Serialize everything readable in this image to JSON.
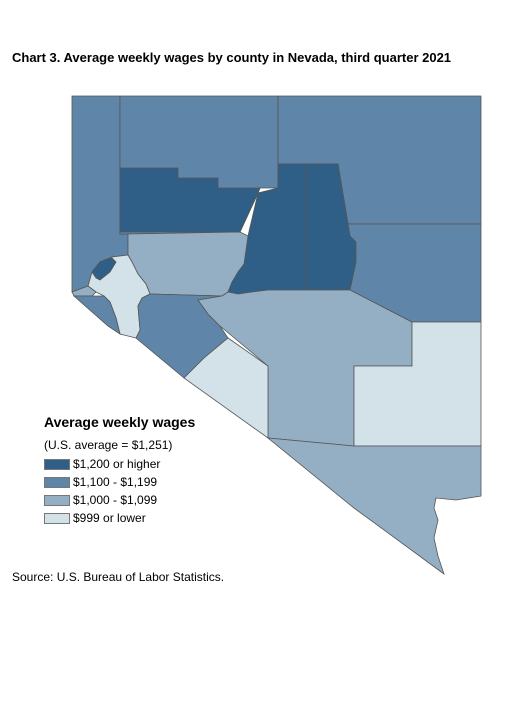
{
  "title": "Chart 3. Average weekly wages by county in Nevada, third quarter 2021",
  "legend": {
    "title": "Average weekly wages",
    "subtitle": "(U.S. average = $1,251)",
    "items": [
      {
        "label": "$1,200 or higher",
        "color": "#2f5f86"
      },
      {
        "label": "$1,100 - $1,199",
        "color": "#5f86a8"
      },
      {
        "label": "$1,000 - $1,099",
        "color": "#94afc4"
      },
      {
        "label": "$999 or lower",
        "color": "#d2e2e8"
      }
    ]
  },
  "source": "Source: U.S. Bureau of Labor Statistics.",
  "chart_data": {
    "type": "choropleth",
    "region": "Nevada counties",
    "period": "third quarter 2021",
    "us_average": 1251,
    "classes": [
      "$1,200 or higher",
      "$1,100 - $1,199",
      "$1,000 - $1,099",
      "$999 or lower"
    ],
    "legend_placement": "bottom-left"
  }
}
